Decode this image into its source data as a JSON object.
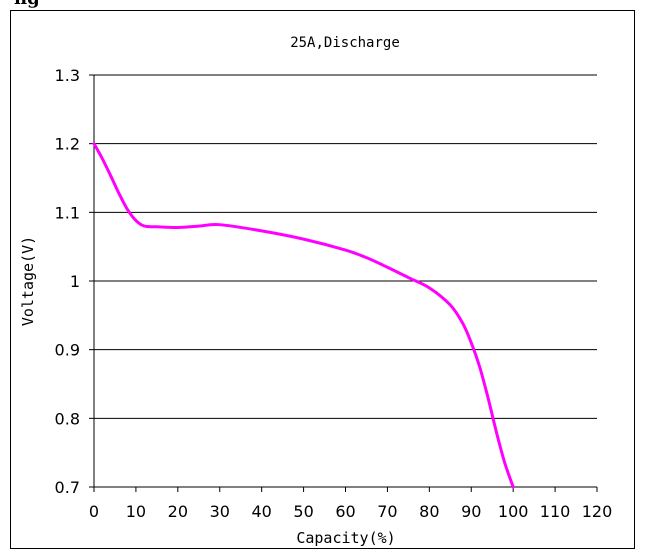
{
  "heading_fragment": "ng",
  "chart_data": {
    "type": "line",
    "title": "25A,Discharge",
    "xlabel": "Capacity(%)",
    "ylabel": "Voltage(V)",
    "xlim": [
      0,
      120
    ],
    "ylim": [
      0.7,
      1.3
    ],
    "xticks": [
      0,
      10,
      20,
      30,
      40,
      50,
      60,
      70,
      80,
      90,
      100,
      110,
      120
    ],
    "yticks": [
      0.7,
      0.8,
      0.9,
      1.0,
      1.1,
      1.2,
      1.3
    ],
    "ytick_labels": [
      "0.7",
      "0.8",
      "0.9",
      "1",
      "1.1",
      "1.2",
      "1.3"
    ],
    "grid": "horizontal",
    "series_color": "#ff00ff",
    "x": [
      0,
      2,
      4,
      6,
      8,
      10,
      12,
      15,
      20,
      25,
      30,
      40,
      50,
      60,
      65,
      70,
      75,
      80,
      85,
      88,
      90,
      92,
      94,
      96,
      98,
      100
    ],
    "y": [
      1.2,
      1.178,
      1.153,
      1.127,
      1.104,
      1.088,
      1.08,
      1.079,
      1.078,
      1.08,
      1.082,
      1.073,
      1.061,
      1.045,
      1.034,
      1.02,
      1.005,
      0.99,
      0.965,
      0.938,
      0.91,
      0.875,
      0.83,
      0.78,
      0.735,
      0.7
    ]
  }
}
